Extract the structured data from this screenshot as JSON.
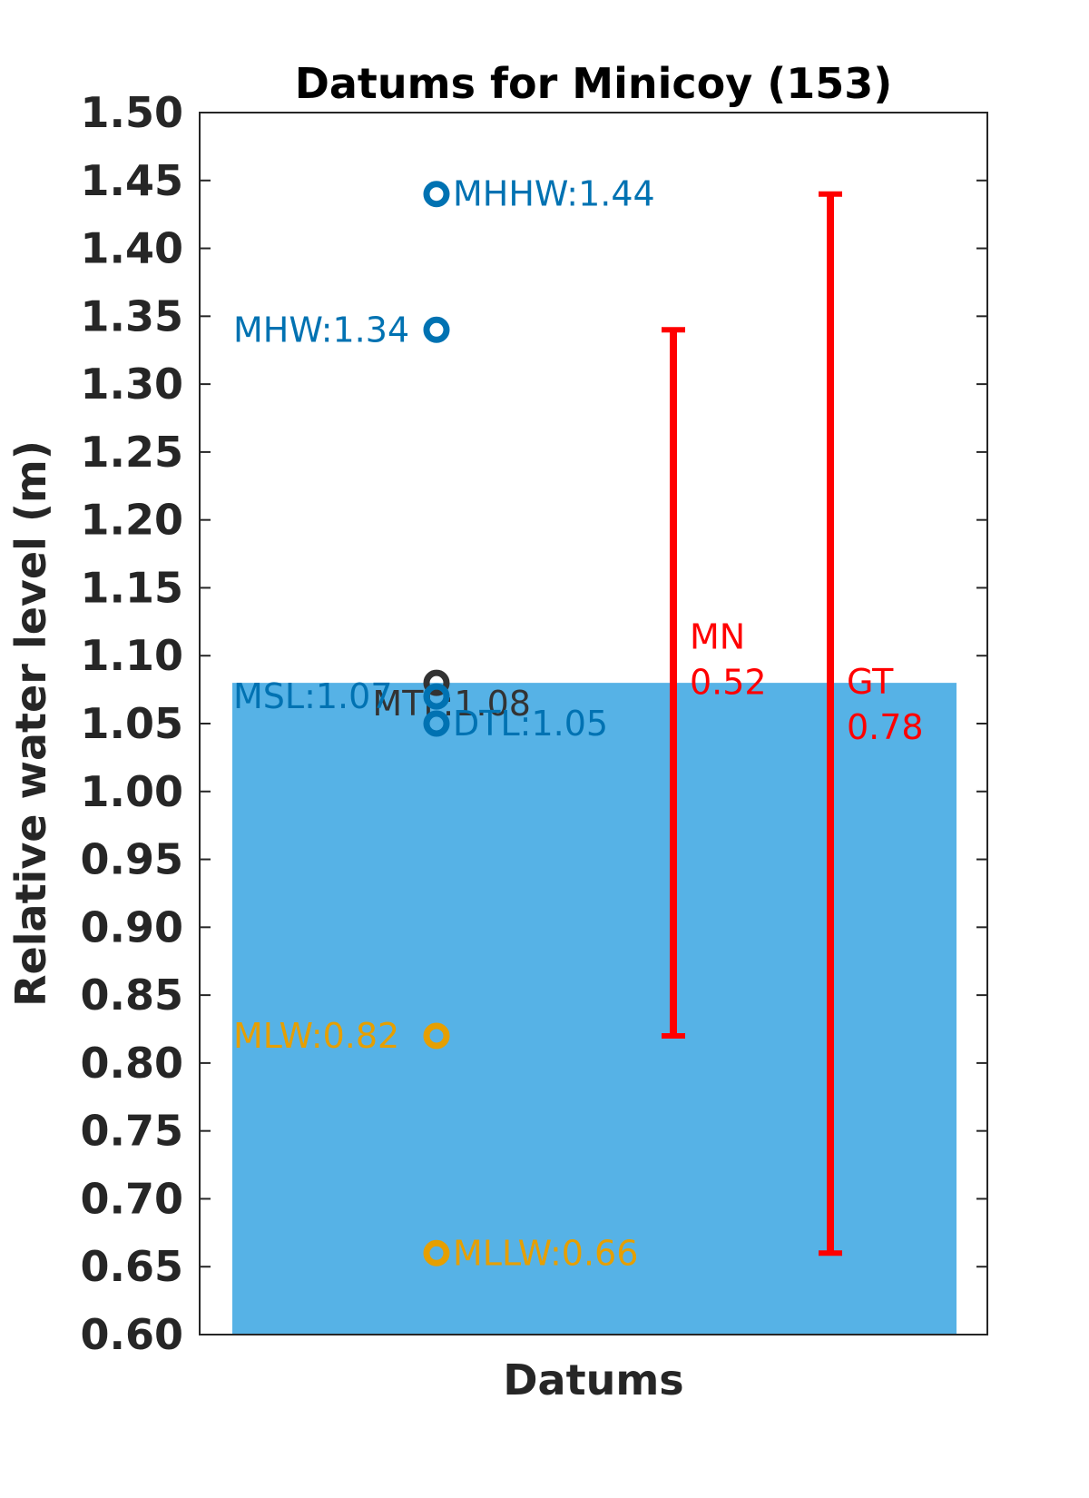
{
  "chart_data": {
    "type": "scatter",
    "title": "Datums for Minicoy (153)",
    "xlabel": "Datums",
    "ylabel": "Relative water level (m)",
    "ylim": [
      0.6,
      1.5
    ],
    "yticks": [
      "0.60",
      "0.65",
      "0.70",
      "0.75",
      "0.80",
      "0.85",
      "0.90",
      "0.95",
      "1.00",
      "1.05",
      "1.10",
      "1.15",
      "1.20",
      "1.25",
      "1.30",
      "1.35",
      "1.40",
      "1.45",
      "1.50"
    ],
    "background_bar": {
      "top": 1.08,
      "color": "#56b2e6"
    },
    "points": [
      {
        "label": "MHHW:1.44",
        "value": 1.44,
        "color": "#0072b2",
        "label_side": "right"
      },
      {
        "label": "MHW:1.34",
        "value": 1.34,
        "color": "#0072b2",
        "label_side": "left"
      },
      {
        "label": "MTL:1.08",
        "value": 1.08,
        "color": "#333333",
        "label_side": "left"
      },
      {
        "label": "MSL:1.07",
        "value": 1.07,
        "color": "#0072b2",
        "label_side": "left"
      },
      {
        "label": "DTL:1.05",
        "value": 1.05,
        "color": "#0072b2",
        "label_side": "right"
      },
      {
        "label": "MLW:0.82",
        "value": 0.82,
        "color": "#e69f00",
        "label_side": "left"
      },
      {
        "label": "MLLW:0.66",
        "value": 0.66,
        "color": "#e69f00",
        "label_side": "right"
      }
    ],
    "ranges": [
      {
        "name": "MN",
        "value_text": "0.52",
        "low": 0.82,
        "high": 1.34,
        "color": "#ff0000"
      },
      {
        "name": "GT",
        "value_text": "0.78",
        "low": 0.66,
        "high": 1.44,
        "color": "#ff0000"
      }
    ],
    "grid": false
  }
}
